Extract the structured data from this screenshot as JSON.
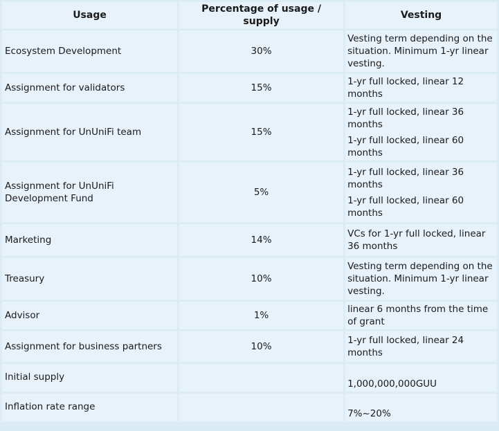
{
  "headers": {
    "usage": "Usage",
    "percentage": "Percentage of usage / supply",
    "vesting": "Vesting"
  },
  "rows": [
    {
      "usage": "Ecosystem Development",
      "percentage": "30%",
      "vesting": [
        "Vesting term depending on the situation. Minimum 1-yr linear vesting."
      ]
    },
    {
      "usage": "Assignment for validators",
      "percentage": "15%",
      "vesting": [
        "1-yr full locked, linear 12 months"
      ]
    },
    {
      "usage": "Assignment for UnUniFi team",
      "percentage": "15%",
      "vesting": [
        "1-yr full locked, linear 36 months",
        "1-yr full locked, linear 60 months"
      ]
    },
    {
      "usage": "Assignment for UnUniFi Development Fund",
      "percentage": "5%",
      "vesting": [
        "1-yr full locked, linear 36 months",
        "1-yr full locked, linear 60 months"
      ]
    },
    {
      "usage": "Marketing",
      "percentage": "14%",
      "vesting": [
        "VCs for 1-yr full locked, linear 36 months"
      ]
    },
    {
      "usage": "Treasury",
      "percentage": "10%",
      "vesting": [
        "Vesting term depending on the situation. Minimum 1-yr linear vesting."
      ]
    },
    {
      "usage": "Advisor",
      "percentage": "1%",
      "vesting": [
        "linear 6 months from the time of grant"
      ]
    },
    {
      "usage": "Assignment for business partners",
      "percentage": "10%",
      "vesting": [
        "1-yr full locked, linear 24 months"
      ]
    }
  ],
  "footer_rows": [
    {
      "label": "Initial supply",
      "value": "1,000,000,000GUU"
    },
    {
      "label": "Inflation rate range",
      "value": "7%~20%"
    }
  ]
}
